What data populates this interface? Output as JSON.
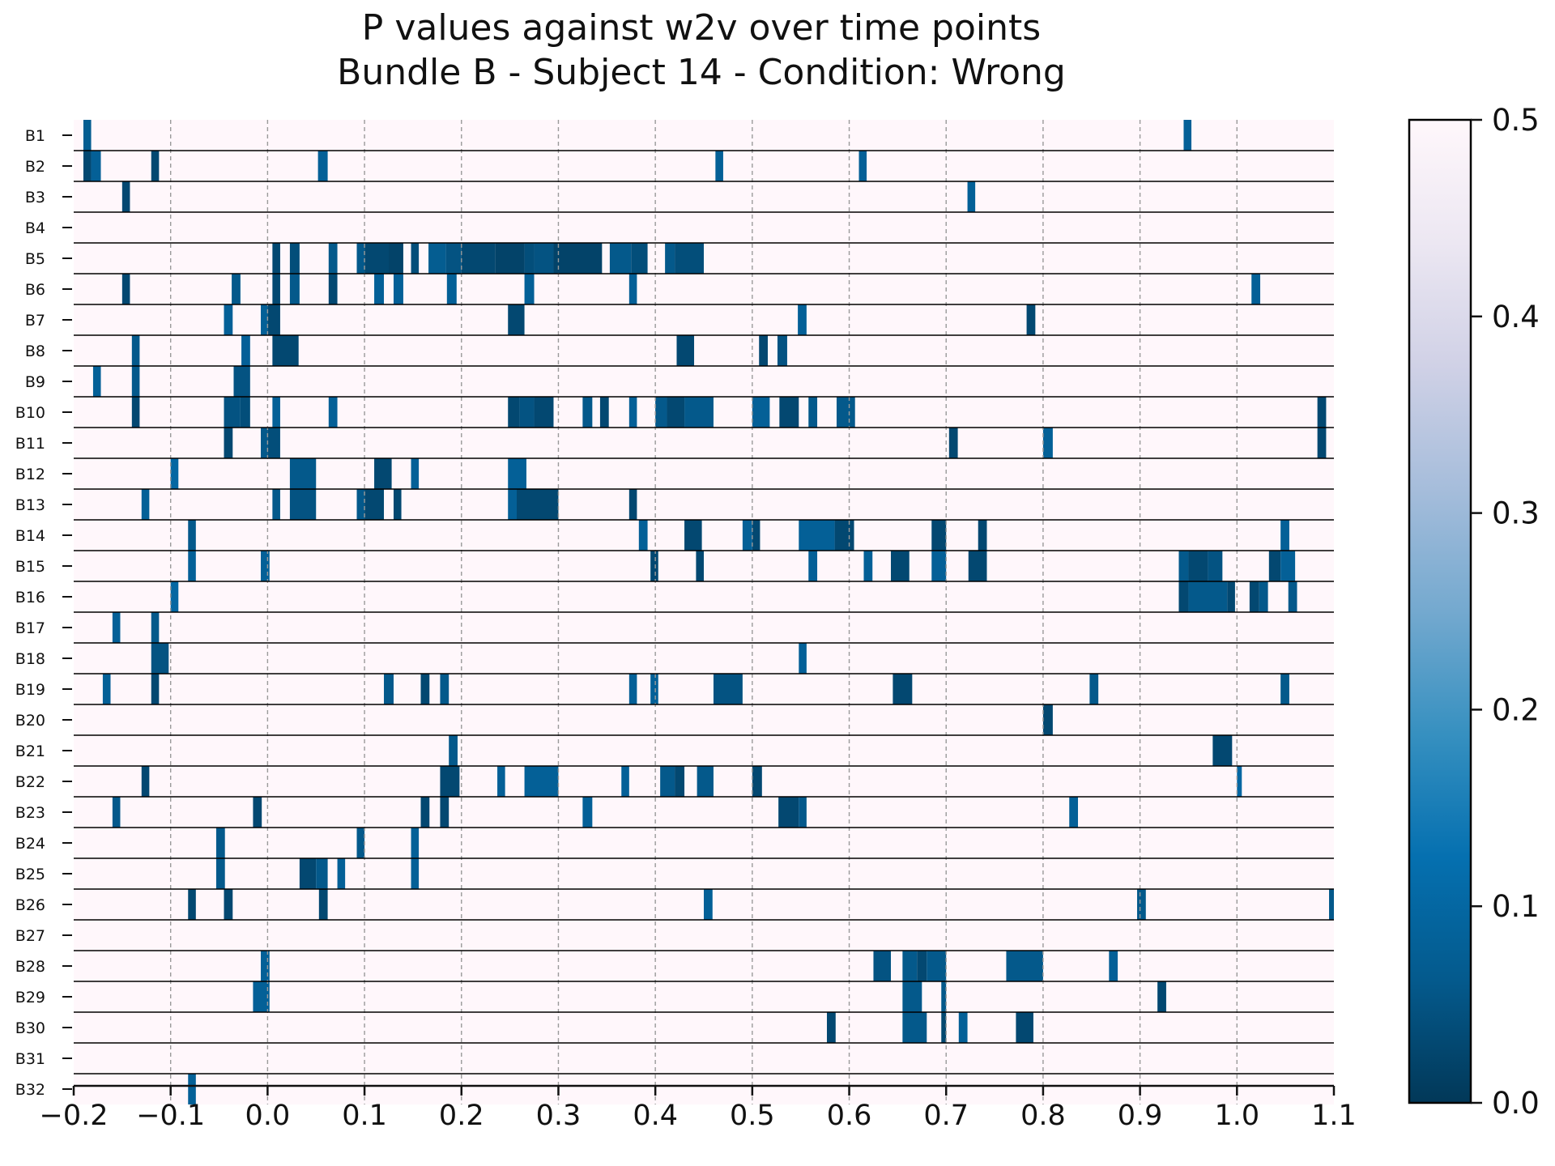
{
  "chart_data": {
    "type": "heatmap",
    "title": "P values against w2v over time points",
    "subtitle": "Bundle B - Subject 14 - Condition: Wrong",
    "xlabel": "",
    "ylabel": "",
    "xlim": [
      -0.2,
      1.1
    ],
    "x_ticks": [
      "−0.2",
      "−0.1",
      "0.0",
      "0.1",
      "0.2",
      "0.3",
      "0.4",
      "0.5",
      "0.6",
      "0.7",
      "0.8",
      "0.9",
      "1.0",
      "1.1"
    ],
    "x_tick_values": [
      -0.2,
      -0.1,
      0.0,
      0.1,
      0.2,
      0.3,
      0.4,
      0.5,
      0.6,
      0.7,
      0.8,
      0.9,
      1.0,
      1.1
    ],
    "grid": "vertical dashed at x ticks",
    "colorbar": {
      "range": [
        0.0,
        0.5
      ],
      "ticks": [
        "0.0",
        "0.1",
        "0.2",
        "0.3",
        "0.4",
        "0.5"
      ],
      "tick_values": [
        0.0,
        0.1,
        0.2,
        0.3,
        0.4,
        0.5
      ],
      "colormap": "PuBu_r",
      "stops": [
        "#023858",
        "#045a8d",
        "#0570b0",
        "#3690c0",
        "#74a9cf",
        "#a6bddb",
        "#d0d1e6",
        "#ece7f2",
        "#fff7fb"
      ]
    },
    "rows": [
      {
        "label": "B1",
        "cells": [
          [
            -0.19,
            -0.182,
            0.07
          ],
          [
            0.945,
            0.953,
            0.08
          ]
        ]
      },
      {
        "label": "B2",
        "cells": [
          [
            -0.19,
            -0.182,
            0.03
          ],
          [
            -0.182,
            -0.172,
            0.08
          ],
          [
            -0.12,
            -0.112,
            0.03
          ],
          [
            0.052,
            0.062,
            0.08
          ],
          [
            0.462,
            0.47,
            0.08
          ],
          [
            0.61,
            0.618,
            0.08
          ]
        ]
      },
      {
        "label": "B3",
        "cells": [
          [
            -0.15,
            -0.142,
            0.03
          ],
          [
            0.722,
            0.73,
            0.08
          ]
        ]
      },
      {
        "label": "B4",
        "cells": []
      },
      {
        "label": "B5",
        "cells": [
          [
            0.005,
            0.013,
            0.03
          ],
          [
            0.023,
            0.033,
            0.04
          ],
          [
            0.063,
            0.072,
            0.06
          ],
          [
            0.092,
            0.1,
            0.06
          ],
          [
            0.1,
            0.125,
            0.03
          ],
          [
            0.125,
            0.14,
            0.02
          ],
          [
            0.148,
            0.156,
            0.04
          ],
          [
            0.166,
            0.184,
            0.07
          ],
          [
            0.184,
            0.2,
            0.05
          ],
          [
            0.2,
            0.235,
            0.03
          ],
          [
            0.235,
            0.265,
            0.02
          ],
          [
            0.265,
            0.275,
            0.04
          ],
          [
            0.275,
            0.295,
            0.05
          ],
          [
            0.295,
            0.345,
            0.02
          ],
          [
            0.353,
            0.375,
            0.06
          ],
          [
            0.375,
            0.392,
            0.04
          ],
          [
            0.41,
            0.42,
            0.06
          ],
          [
            0.42,
            0.45,
            0.04
          ]
        ]
      },
      {
        "label": "B6",
        "cells": [
          [
            -0.15,
            -0.142,
            0.03
          ],
          [
            -0.037,
            -0.028,
            0.06
          ],
          [
            0.005,
            0.013,
            0.03
          ],
          [
            0.023,
            0.033,
            0.06
          ],
          [
            0.063,
            0.072,
            0.03
          ],
          [
            0.11,
            0.12,
            0.08
          ],
          [
            0.13,
            0.14,
            0.08
          ],
          [
            0.185,
            0.195,
            0.08
          ],
          [
            0.265,
            0.275,
            0.08
          ],
          [
            0.373,
            0.381,
            0.08
          ],
          [
            1.015,
            1.024,
            0.08
          ]
        ]
      },
      {
        "label": "B7",
        "cells": [
          [
            -0.045,
            -0.036,
            0.08
          ],
          [
            -0.007,
            0.0,
            0.08
          ],
          [
            0.0,
            0.013,
            0.03
          ],
          [
            0.248,
            0.265,
            0.03
          ],
          [
            0.547,
            0.556,
            0.08
          ],
          [
            0.783,
            0.792,
            0.03
          ]
        ]
      },
      {
        "label": "B8",
        "cells": [
          [
            -0.14,
            -0.132,
            0.06
          ],
          [
            -0.027,
            -0.018,
            0.08
          ],
          [
            0.005,
            0.032,
            0.03
          ],
          [
            0.422,
            0.44,
            0.03
          ],
          [
            0.507,
            0.516,
            0.03
          ],
          [
            0.526,
            0.536,
            0.05
          ]
        ]
      },
      {
        "label": "B9",
        "cells": [
          [
            -0.18,
            -0.172,
            0.08
          ],
          [
            -0.14,
            -0.132,
            0.06
          ],
          [
            -0.035,
            -0.018,
            0.05
          ]
        ]
      },
      {
        "label": "B10",
        "cells": [
          [
            -0.14,
            -0.132,
            0.03
          ],
          [
            -0.045,
            -0.028,
            0.05
          ],
          [
            -0.028,
            -0.018,
            0.04
          ],
          [
            0.005,
            0.013,
            0.08
          ],
          [
            0.063,
            0.072,
            0.08
          ],
          [
            0.248,
            0.26,
            0.03
          ],
          [
            0.26,
            0.275,
            0.05
          ],
          [
            0.275,
            0.295,
            0.03
          ],
          [
            0.325,
            0.335,
            0.06
          ],
          [
            0.343,
            0.352,
            0.03
          ],
          [
            0.373,
            0.381,
            0.08
          ],
          [
            0.4,
            0.412,
            0.06
          ],
          [
            0.412,
            0.43,
            0.03
          ],
          [
            0.43,
            0.46,
            0.06
          ],
          [
            0.5,
            0.518,
            0.08
          ],
          [
            0.528,
            0.548,
            0.03
          ],
          [
            0.558,
            0.567,
            0.06
          ],
          [
            0.587,
            0.606,
            0.06
          ],
          [
            1.083,
            1.092,
            0.03
          ]
        ]
      },
      {
        "label": "B11",
        "cells": [
          [
            -0.045,
            -0.036,
            0.03
          ],
          [
            -0.007,
            0.0,
            0.06
          ],
          [
            0.0,
            0.013,
            0.04
          ],
          [
            0.703,
            0.712,
            0.03
          ],
          [
            0.8,
            0.81,
            0.08
          ],
          [
            1.083,
            1.092,
            0.03
          ]
        ]
      },
      {
        "label": "B12",
        "cells": [
          [
            -0.1,
            -0.092,
            0.1
          ],
          [
            0.023,
            0.05,
            0.06
          ],
          [
            0.11,
            0.128,
            0.03
          ],
          [
            0.148,
            0.156,
            0.08
          ],
          [
            0.248,
            0.267,
            0.08
          ]
        ]
      },
      {
        "label": "B13",
        "cells": [
          [
            -0.13,
            -0.122,
            0.08
          ],
          [
            0.005,
            0.013,
            0.06
          ],
          [
            0.023,
            0.05,
            0.05
          ],
          [
            0.092,
            0.1,
            0.06
          ],
          [
            0.1,
            0.12,
            0.03
          ],
          [
            0.13,
            0.138,
            0.03
          ],
          [
            0.248,
            0.257,
            0.08
          ],
          [
            0.257,
            0.3,
            0.03
          ],
          [
            0.373,
            0.381,
            0.03
          ]
        ]
      },
      {
        "label": "B14",
        "cells": [
          [
            -0.082,
            -0.074,
            0.06
          ],
          [
            0.383,
            0.392,
            0.08
          ],
          [
            0.43,
            0.448,
            0.03
          ],
          [
            0.49,
            0.5,
            0.08
          ],
          [
            0.5,
            0.508,
            0.03
          ],
          [
            0.548,
            0.585,
            0.08
          ],
          [
            0.585,
            0.605,
            0.03
          ],
          [
            0.685,
            0.7,
            0.03
          ],
          [
            0.733,
            0.742,
            0.03
          ],
          [
            1.045,
            1.054,
            0.08
          ]
        ]
      },
      {
        "label": "B15",
        "cells": [
          [
            -0.082,
            -0.074,
            0.08
          ],
          [
            -0.007,
            0.002,
            0.08
          ],
          [
            0.395,
            0.403,
            0.03
          ],
          [
            0.442,
            0.45,
            0.03
          ],
          [
            0.558,
            0.567,
            0.08
          ],
          [
            0.615,
            0.624,
            0.08
          ],
          [
            0.643,
            0.662,
            0.03
          ],
          [
            0.685,
            0.7,
            0.08
          ],
          [
            0.723,
            0.742,
            0.03
          ],
          [
            0.94,
            0.95,
            0.06
          ],
          [
            0.95,
            0.97,
            0.03
          ],
          [
            0.97,
            0.985,
            0.05
          ],
          [
            1.033,
            1.045,
            0.03
          ],
          [
            1.045,
            1.06,
            0.08
          ]
        ]
      },
      {
        "label": "B16",
        "cells": [
          [
            -0.1,
            -0.092,
            0.1
          ],
          [
            0.94,
            0.95,
            0.03
          ],
          [
            0.95,
            0.99,
            0.06
          ],
          [
            0.99,
            0.998,
            0.03
          ],
          [
            1.013,
            1.023,
            0.03
          ],
          [
            1.023,
            1.032,
            0.06
          ],
          [
            1.053,
            1.062,
            0.06
          ]
        ]
      },
      {
        "label": "B17",
        "cells": [
          [
            -0.16,
            -0.152,
            0.08
          ],
          [
            -0.12,
            -0.112,
            0.06
          ]
        ]
      },
      {
        "label": "B18",
        "cells": [
          [
            -0.12,
            -0.102,
            0.05
          ],
          [
            0.548,
            0.556,
            0.08
          ]
        ]
      },
      {
        "label": "B19",
        "cells": [
          [
            -0.17,
            -0.162,
            0.08
          ],
          [
            -0.12,
            -0.112,
            0.03
          ],
          [
            0.12,
            0.13,
            0.06
          ],
          [
            0.158,
            0.167,
            0.03
          ],
          [
            0.178,
            0.187,
            0.06
          ],
          [
            0.373,
            0.381,
            0.08
          ],
          [
            0.395,
            0.403,
            0.08
          ],
          [
            0.46,
            0.49,
            0.05
          ],
          [
            0.645,
            0.665,
            0.03
          ],
          [
            0.848,
            0.857,
            0.06
          ],
          [
            1.045,
            1.054,
            0.06
          ]
        ]
      },
      {
        "label": "B20",
        "cells": [
          [
            0.8,
            0.81,
            0.03
          ]
        ]
      },
      {
        "label": "B21",
        "cells": [
          [
            0.187,
            0.196,
            0.06
          ],
          [
            0.975,
            0.995,
            0.03
          ]
        ]
      },
      {
        "label": "B22",
        "cells": [
          [
            -0.13,
            -0.122,
            0.03
          ],
          [
            0.178,
            0.198,
            0.03
          ],
          [
            0.237,
            0.245,
            0.08
          ],
          [
            0.265,
            0.3,
            0.08
          ],
          [
            0.365,
            0.373,
            0.08
          ],
          [
            0.405,
            0.42,
            0.06
          ],
          [
            0.42,
            0.43,
            0.03
          ],
          [
            0.443,
            0.46,
            0.06
          ],
          [
            0.5,
            0.51,
            0.03
          ],
          [
            1.0,
            1.005,
            0.1
          ]
        ]
      },
      {
        "label": "B23",
        "cells": [
          [
            -0.16,
            -0.152,
            0.06
          ],
          [
            -0.015,
            -0.006,
            0.03
          ],
          [
            0.158,
            0.167,
            0.03
          ],
          [
            0.178,
            0.187,
            0.03
          ],
          [
            0.325,
            0.335,
            0.08
          ],
          [
            0.527,
            0.548,
            0.03
          ],
          [
            0.548,
            0.556,
            0.06
          ],
          [
            0.827,
            0.836,
            0.08
          ]
        ]
      },
      {
        "label": "B24",
        "cells": [
          [
            -0.053,
            -0.044,
            0.06
          ],
          [
            0.092,
            0.1,
            0.06
          ],
          [
            0.148,
            0.156,
            0.08
          ]
        ]
      },
      {
        "label": "B25",
        "cells": [
          [
            -0.053,
            -0.044,
            0.06
          ],
          [
            0.033,
            0.05,
            0.03
          ],
          [
            0.05,
            0.062,
            0.06
          ],
          [
            0.072,
            0.08,
            0.08
          ],
          [
            0.148,
            0.156,
            0.08
          ]
        ]
      },
      {
        "label": "B26",
        "cells": [
          [
            -0.082,
            -0.074,
            0.03
          ],
          [
            -0.045,
            -0.036,
            0.03
          ],
          [
            0.053,
            0.062,
            0.03
          ],
          [
            0.45,
            0.459,
            0.08
          ],
          [
            0.897,
            0.906,
            0.06
          ],
          [
            1.095,
            1.1,
            0.06
          ]
        ]
      },
      {
        "label": "B27",
        "cells": []
      },
      {
        "label": "B28",
        "cells": [
          [
            -0.007,
            0.002,
            0.08
          ],
          [
            0.625,
            0.643,
            0.05
          ],
          [
            0.655,
            0.67,
            0.06
          ],
          [
            0.67,
            0.68,
            0.03
          ],
          [
            0.68,
            0.7,
            0.06
          ],
          [
            0.762,
            0.8,
            0.06
          ],
          [
            0.868,
            0.877,
            0.08
          ]
        ]
      },
      {
        "label": "B29",
        "cells": [
          [
            -0.015,
            0.002,
            0.08
          ],
          [
            0.655,
            0.675,
            0.06
          ],
          [
            0.695,
            0.7,
            0.06
          ],
          [
            0.918,
            0.927,
            0.03
          ]
        ]
      },
      {
        "label": "B30",
        "cells": [
          [
            0.577,
            0.586,
            0.03
          ],
          [
            0.655,
            0.68,
            0.06
          ],
          [
            0.695,
            0.7,
            0.03
          ],
          [
            0.713,
            0.722,
            0.08
          ],
          [
            0.772,
            0.79,
            0.03
          ]
        ]
      },
      {
        "label": "B31",
        "cells": []
      },
      {
        "label": "B32",
        "cells": [
          [
            -0.082,
            -0.074,
            0.08
          ]
        ]
      }
    ]
  }
}
